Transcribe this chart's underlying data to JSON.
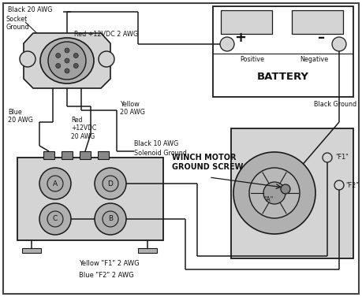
{
  "bg": "#ffffff",
  "lc": "#1a1a1a",
  "gray_light": "#d4d4d4",
  "gray_med": "#b0b0b0",
  "gray_dark": "#888888",
  "labels": {
    "black_20awg": "Black 20 AWG",
    "socket_ground": "Socket\nGround",
    "blue_20awg": "Blue\n20 AWG",
    "yellow_20awg": "Yellow\n20 AWG",
    "red_20awg": "Red\n+12VDC\n20 AWG",
    "red_2awg": "Red +12VDC 2 AWG",
    "black_10awg": "Black 10 AWG",
    "solenoid_ground": "Solenoid Ground",
    "black_ground": "Black Ground",
    "winch_label": "WINCH MOTOR\nGROUND SCREW",
    "battery": "BATTERY",
    "positive": "Positive",
    "negative": "Negative",
    "yellow_f1": "Yellow \"F1\" 2 AWG",
    "blue_f2": "Blue \"F2\" 2 AWG",
    "f1": "\"F1\"",
    "f2": "\"F2\"",
    "a_motor": "\"A\"",
    "A": "A",
    "B": "B",
    "C": "C",
    "D": "D"
  },
  "figsize": [
    4.59,
    3.77
  ],
  "dpi": 100
}
